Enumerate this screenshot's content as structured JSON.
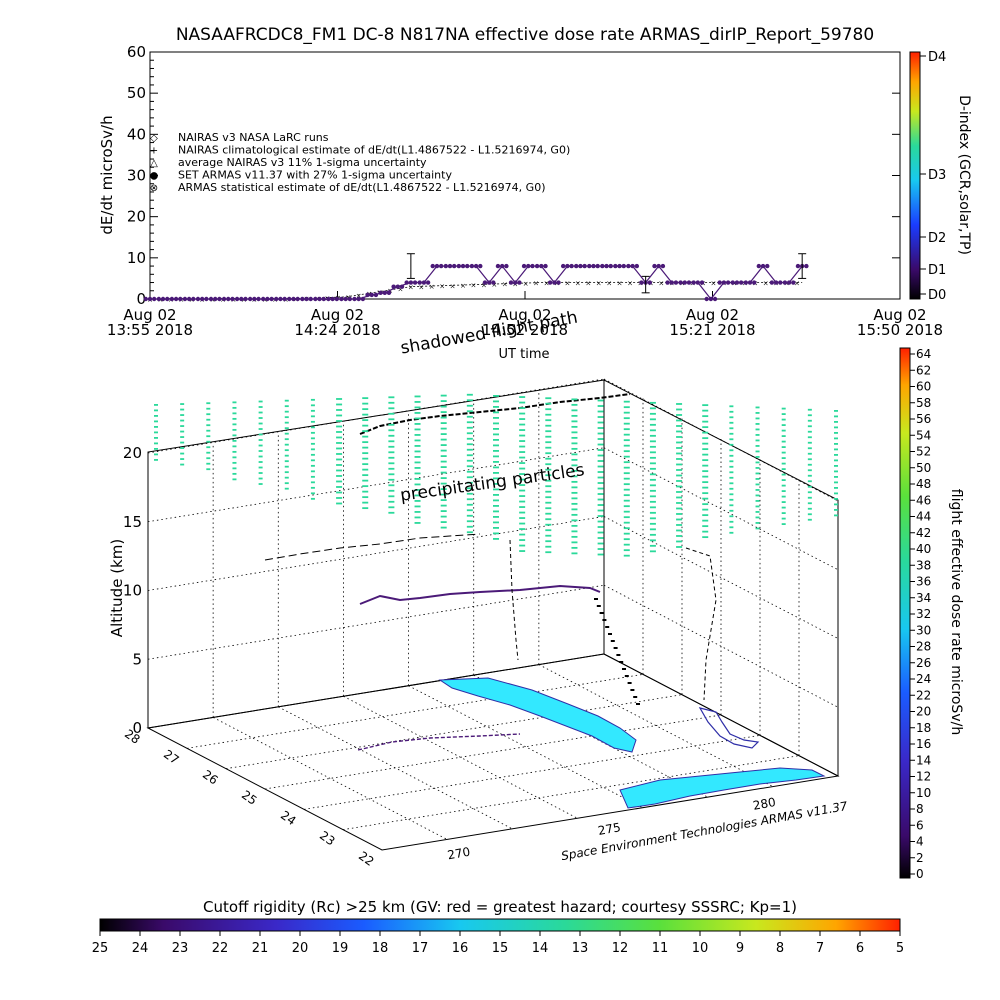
{
  "title": "NASAAFRCDC8_FM1 DC-8   N817NA effective dose rate ARMAS_dirIP_Report_59780",
  "colors": {
    "plot_purple": "#4b1a78",
    "markers_black": "#000000",
    "flight_green": "#2ad99a",
    "land_cyan": "#33e8ff",
    "land_outline": "#2f2fa8"
  },
  "chart_data": [
    {
      "type": "line",
      "ylabel": "dE/dt microSv/h",
      "ylim": [
        0,
        60
      ],
      "yticks": [
        "0",
        "10",
        "20",
        "30",
        "40",
        "50",
        "60"
      ],
      "xticks": [
        {
          "line1": "Aug 02",
          "line2": "13:55 2018"
        },
        {
          "line1": "Aug 02",
          "line2": "14:24 2018"
        },
        {
          "line1": "Aug 02",
          "line2": "14:52 2018"
        },
        {
          "line1": "Aug 02",
          "line2": "15:21 2018"
        },
        {
          "line1": "Aug 02",
          "line2": "15:50 2018"
        }
      ],
      "xlabel": "UT time",
      "xlim_minutes_from_first_tick": [
        0,
        115
      ],
      "legend": [
        "NAIRAS v3 NASA LaRC runs",
        "NAIRAS climatological estimate of dE/dt(L1.4867522 - L1.5216974, G0)",
        "average NAIRAS v3 11% 1-sigma uncertainty",
        "SET ARMAS v11.37 with 27% 1-sigma uncertainty",
        "ARMAS statistical estimate of dE/dt(L1.4867522 - L1.5216974, G0)"
      ],
      "right_axis": {
        "label": "D-index (GCR,solar,TP)",
        "ticks": [
          "D0",
          "D1",
          "D2",
          "D3",
          "D4"
        ]
      },
      "series": [
        {
          "name": "SET ARMAS v11.37 with 27% 1-sigma uncertainty",
          "x_minutes": [
            0,
            2,
            4,
            6,
            8,
            10,
            12,
            14,
            16,
            18,
            20,
            22,
            24,
            26,
            28,
            30,
            32,
            34,
            36,
            38,
            40,
            42,
            44,
            46,
            48,
            50,
            52,
            54,
            56,
            58,
            60,
            62,
            64,
            66,
            68,
            70,
            72,
            74,
            76,
            78,
            80,
            82,
            84,
            86,
            88,
            90,
            92,
            94,
            96,
            98,
            100
          ],
          "values": [
            0,
            0,
            0,
            0,
            0,
            0,
            0,
            0,
            0,
            0,
            0,
            0,
            0,
            0,
            0,
            0,
            0,
            1,
            1.5,
            3,
            4,
            4,
            8,
            8,
            8,
            8,
            4,
            8,
            4,
            8,
            8,
            4,
            8,
            8,
            8,
            8,
            8,
            8,
            4,
            8,
            4,
            4,
            4,
            0,
            4,
            4,
            4,
            8,
            4,
            4,
            8
          ]
        },
        {
          "name": "ARMAS statistical estimate of dE/dt(L1.4867522 - L1.5216974, G0)",
          "x_minutes": [
            0,
            10,
            20,
            30,
            34,
            40,
            50,
            60,
            70,
            80,
            90,
            100
          ],
          "values": [
            0,
            0,
            0,
            0.5,
            1.5,
            3,
            3.5,
            4,
            4,
            4,
            4,
            4
          ]
        }
      ]
    },
    {
      "type": "scatter",
      "ylabel": "Altitude (km)",
      "zticks": [
        "0",
        "5",
        "10",
        "15",
        "20"
      ],
      "latitude_ticks": [
        "28",
        "27",
        "26",
        "25",
        "24",
        "23",
        "22"
      ],
      "longitude_ticks": [
        "270",
        "275",
        "280"
      ],
      "annotations": [
        "shadowed flight path",
        "precipitating particles"
      ],
      "credit": "Space Environment Technologies ARMAS v11.37",
      "colorbar_right": {
        "label": "flight effective dose rate microSv/h",
        "ticks": [
          "0",
          "2",
          "4",
          "6",
          "8",
          "10",
          "12",
          "14",
          "16",
          "18",
          "20",
          "22",
          "24",
          "26",
          "28",
          "30",
          "32",
          "34",
          "36",
          "38",
          "40",
          "42",
          "44",
          "46",
          "48",
          "50",
          "52",
          "54",
          "56",
          "58",
          "60",
          "62",
          "64"
        ]
      },
      "colorbar_bottom": {
        "label": "Cutoff rigidity (Rc) >25 km (GV: red = greatest hazard; courtesy SSSRC; Kp=1)",
        "ticks": [
          "25",
          "24",
          "23",
          "22",
          "21",
          "20",
          "19",
          "18",
          "17",
          "16",
          "15",
          "14",
          "13",
          "12",
          "11",
          "10",
          "9",
          "8",
          "7",
          "6",
          "5"
        ]
      }
    }
  ]
}
